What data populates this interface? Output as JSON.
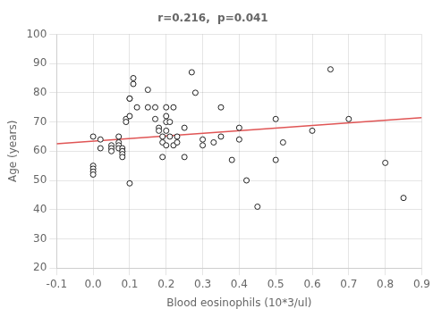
{
  "chart_data": {
    "type": "scatter",
    "title": "r=0.216,  p=0.041",
    "xlabel": "Blood eosinophils (10*3/ul)",
    "ylabel": "Age (years)",
    "xlim": [
      -0.1,
      0.9
    ],
    "ylim": [
      20,
      100
    ],
    "xticks": [
      -0.1,
      {
        "value": 0.0,
        "label": "0.0"
      },
      0.1,
      0.2,
      0.3,
      0.4,
      0.5,
      0.6,
      0.7,
      0.8,
      0.9
    ],
    "yticks": [
      20,
      30,
      40,
      50,
      60,
      70,
      80,
      90,
      100
    ],
    "grid": true,
    "series": [
      {
        "type": "scatter",
        "marker": "open_circle",
        "color": "#222222",
        "x": [
          0.0,
          0.0,
          0.0,
          0.0,
          0.0,
          0.02,
          0.02,
          0.05,
          0.05,
          0.05,
          0.07,
          0.07,
          0.07,
          0.07,
          0.08,
          0.08,
          0.08,
          0.08,
          0.08,
          0.09,
          0.09,
          0.1,
          0.1,
          0.1,
          0.1,
          0.11,
          0.11,
          0.12,
          0.15,
          0.15,
          0.17,
          0.17,
          0.18,
          0.18,
          0.19,
          0.19,
          0.19,
          0.2,
          0.2,
          0.2,
          0.2,
          0.2,
          0.21,
          0.21,
          0.22,
          0.22,
          0.23,
          0.23,
          0.25,
          0.25,
          0.27,
          0.28,
          0.3,
          0.3,
          0.33,
          0.35,
          0.35,
          0.38,
          0.4,
          0.4,
          0.42,
          0.45,
          0.5,
          0.5,
          0.52,
          0.6,
          0.65,
          0.7,
          0.8,
          0.85
        ],
        "values": [
          65,
          55,
          54,
          53,
          52,
          64,
          61,
          62,
          61,
          60,
          65,
          63,
          62,
          61,
          61,
          60,
          60,
          59,
          58,
          71,
          70,
          78,
          78,
          72,
          49,
          85,
          83,
          75,
          81,
          75,
          75,
          71,
          68,
          67,
          65,
          63,
          58,
          75,
          72,
          70,
          67,
          62,
          70,
          65,
          75,
          62,
          65,
          63,
          68,
          58,
          87,
          80,
          64,
          62,
          63,
          75,
          65,
          57,
          68,
          64,
          50,
          41,
          71,
          57,
          63,
          67,
          88,
          71,
          56,
          44
        ]
      },
      {
        "type": "line",
        "line_style": "solid",
        "color": "#e05555",
        "x": [
          -0.1,
          0.9
        ],
        "values": [
          62.5,
          71.5
        ]
      }
    ]
  }
}
